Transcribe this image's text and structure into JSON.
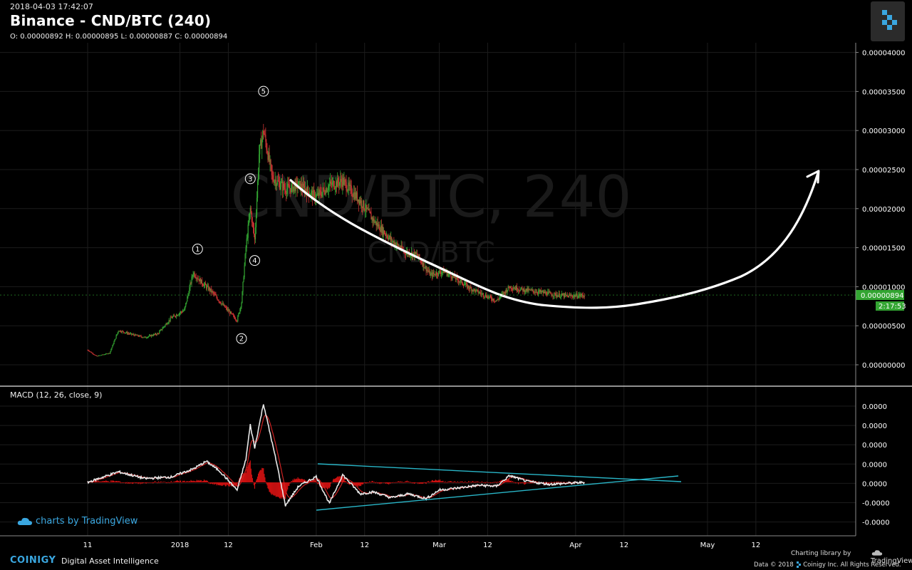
{
  "header": {
    "timestamp": "2018-04-03 17:42:07",
    "title": "Binance - CND/BTC (240)",
    "ohlc": "O: 0.00000892 H: 0.00000895 L: 0.00000887 C: 0.00000894"
  },
  "watermark": {
    "symbol": "CND/BTC, 240",
    "subsymbol": "CND/BTC"
  },
  "price_badge": {
    "price": "0.00000894",
    "countdown": "2:17:53",
    "color": "#33a532"
  },
  "macd": {
    "label": "MACD (12, 26, close, 9)",
    "y_ticks": [
      "0.0000",
      "0.0000",
      "0.0000",
      "0.0000",
      "0.0000",
      "-0.0000",
      "-0.0000"
    ]
  },
  "branding": {
    "tradingview": "charts by TradingView",
    "coinigy": "COINIGY",
    "tagline": "Digital Asset Intelligence",
    "charting_library": "Charting library by",
    "tv_name": "TradingView",
    "data_credit": "Data © 2018",
    "data_credit_tail": "Coinigy Inc. All Rights Reserved."
  },
  "colors": {
    "background": "#000000",
    "candle_up": "#33a532",
    "candle_down": "#cc3333",
    "macd_line": "#e8e8e8",
    "signal_line": "#cc2222",
    "histogram": "#cc1111",
    "trendline": "#29b6c8",
    "drawing": "#ffffff"
  },
  "chart_data": [
    {
      "type": "candlestick",
      "title": "Binance - CND/BTC (240)",
      "x_tick_labels": [
        "11",
        "2018",
        "12",
        "Feb",
        "12",
        "Mar",
        "12",
        "Apr",
        "12",
        "May",
        "12"
      ],
      "y_tick_labels": [
        "0.00000000",
        "0.00000500",
        "0.00001000",
        "0.00001500",
        "0.00002000",
        "0.00002500",
        "0.00003000",
        "0.00003500",
        "0.00004000"
      ],
      "ylim": [
        0,
        4e-05
      ],
      "wave_labels": [
        "1",
        "2",
        "3",
        "4",
        "5"
      ],
      "waves": [
        {
          "label": "1",
          "date": "2018-01-05",
          "price": 1.3e-05
        },
        {
          "label": "2",
          "date": "2018-01-15",
          "price": 5e-06
        },
        {
          "label": "3",
          "date": "2018-01-17",
          "price": 2.2e-05
        },
        {
          "label": "4",
          "date": "2018-01-18",
          "price": 1.5e-05
        },
        {
          "label": "5",
          "date": "2018-01-20",
          "price": 3.32e-05
        }
      ],
      "series": [
        {
          "name": "CND/BTC",
          "points": [
            [
              "2017-12-11",
              1.9e-06
            ],
            [
              "2017-12-13",
              1.1e-06
            ],
            [
              "2017-12-16",
              1.5e-06
            ],
            [
              "2017-12-18",
              4.4e-06
            ],
            [
              "2017-12-21",
              3.9e-06
            ],
            [
              "2017-12-24",
              3.5e-06
            ],
            [
              "2017-12-27",
              4e-06
            ],
            [
              "2017-12-30",
              6e-06
            ],
            [
              "2018-01-02",
              7e-06
            ],
            [
              "2018-01-04",
              1.18e-05
            ],
            [
              "2018-01-06",
              1.05e-05
            ],
            [
              "2018-01-08",
              9.5e-06
            ],
            [
              "2018-01-11",
              7.5e-06
            ],
            [
              "2018-01-14",
              5.7e-06
            ],
            [
              "2018-01-15",
              8e-06
            ],
            [
              "2018-01-16",
              1.5e-05
            ],
            [
              "2018-01-17",
              2e-05
            ],
            [
              "2018-01-18",
              1.6e-05
            ],
            [
              "2018-01-19",
              2.7e-05
            ],
            [
              "2018-01-20",
              3e-05
            ],
            [
              "2018-01-22",
              2.4e-05
            ],
            [
              "2018-01-25",
              2.25e-05
            ],
            [
              "2018-01-28",
              2.3e-05
            ],
            [
              "2018-02-01",
              2.15e-05
            ],
            [
              "2018-02-04",
              2.3e-05
            ],
            [
              "2018-02-07",
              2.35e-05
            ],
            [
              "2018-02-11",
              2.1e-05
            ],
            [
              "2018-02-14",
              1.85e-05
            ],
            [
              "2018-02-18",
              1.6e-05
            ],
            [
              "2018-02-21",
              1.45e-05
            ],
            [
              "2018-02-24",
              1.4e-05
            ],
            [
              "2018-02-27",
              1.15e-05
            ],
            [
              "2018-03-02",
              1.2e-05
            ],
            [
              "2018-03-05",
              1.1e-05
            ],
            [
              "2018-03-08",
              9.8e-06
            ],
            [
              "2018-03-11",
              9e-06
            ],
            [
              "2018-03-14",
              8.2e-06
            ],
            [
              "2018-03-17",
              1e-05
            ],
            [
              "2018-03-20",
              9.6e-06
            ],
            [
              "2018-03-23",
              9.4e-06
            ],
            [
              "2018-03-27",
              9e-06
            ],
            [
              "2018-03-30",
              8.8e-06
            ],
            [
              "2018-04-03",
              8.9e-06
            ]
          ]
        }
      ]
    },
    {
      "type": "line",
      "title": "MACD (12, 26, close, 9)",
      "ylim": [
        -2.5e-06,
        4.5e-06
      ],
      "series": [
        {
          "values": [
            [
              "2017-12-11",
              0.0
            ],
            [
              "2017-12-18",
              5.5e-07
            ],
            [
              "2017-12-24",
              2e-07
            ],
            [
              "2017-12-30",
              2.8e-07
            ],
            [
              "2018-01-04",
              7e-07
            ],
            [
              "2018-01-07",
              1.1e-06
            ],
            [
              "2018-01-10",
              6e-07
            ],
            [
              "2018-01-14",
              -4e-07
            ],
            [
              "2018-01-16",
              1.2e-06
            ],
            [
              "2018-01-17",
              3e-06
            ],
            [
              "2018-01-18",
              1.8e-06
            ],
            [
              "2018-01-20",
              4.1e-06
            ],
            [
              "2018-01-23",
              1e-06
            ],
            [
              "2018-01-25",
              -1.2e-06
            ],
            [
              "2018-01-28",
              -2e-07
            ],
            [
              "2018-02-01",
              3e-07
            ],
            [
              "2018-02-04",
              -1.1e-06
            ],
            [
              "2018-02-07",
              4e-07
            ],
            [
              "2018-02-11",
              -6e-07
            ],
            [
              "2018-02-14",
              -5e-07
            ],
            [
              "2018-02-18",
              -8e-07
            ],
            [
              "2018-02-22",
              -6e-07
            ],
            [
              "2018-02-26",
              -8.5e-07
            ],
            [
              "2018-03-01",
              -4e-07
            ],
            [
              "2018-03-05",
              -3e-07
            ],
            [
              "2018-03-10",
              -1.5e-07
            ],
            [
              "2018-03-14",
              -2e-07
            ],
            [
              "2018-03-17",
              3.5e-07
            ],
            [
              "2018-03-21",
              5e-08
            ],
            [
              "2018-03-26",
              -1e-07
            ],
            [
              "2018-03-30",
              -5e-08
            ],
            [
              "2018-04-03",
              0.0
            ]
          ]
        }
      ]
    }
  ]
}
